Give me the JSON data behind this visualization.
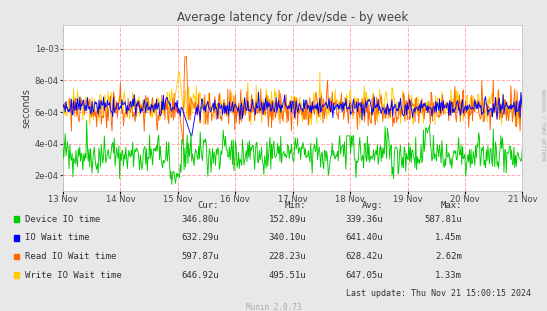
{
  "title": "Average latency for /dev/sde - by week",
  "ylabel": "seconds",
  "xlabel_dates": [
    "13 Nov",
    "14 Nov",
    "15 Nov",
    "16 Nov",
    "17 Nov",
    "18 Nov",
    "19 Nov",
    "20 Nov",
    "21 Nov"
  ],
  "ylim": [
    0.0001,
    0.00115
  ],
  "yticks": [
    0.0002,
    0.0004,
    0.0006,
    0.0008,
    0.001
  ],
  "bg_color": "#e8e8e8",
  "plot_bg_color": "#ffffff",
  "grid_color": "#ffaaaa",
  "line_colors": {
    "device_io": "#00cc00",
    "io_wait": "#0000ff",
    "read_io_wait": "#ff6600",
    "write_io_wait": "#ffcc00"
  },
  "legend": [
    {
      "label": "Device IO time",
      "color": "#00cc00",
      "cur": "346.80u",
      "min": "152.89u",
      "avg": "339.36u",
      "max": "587.81u"
    },
    {
      "label": "IO Wait time",
      "color": "#0000ff",
      "cur": "632.29u",
      "min": "340.10u",
      "avg": "641.40u",
      "max": "1.45m"
    },
    {
      "label": "Read IO Wait time",
      "color": "#ff6600",
      "cur": "597.87u",
      "min": "228.23u",
      "avg": "628.42u",
      "max": "2.62m"
    },
    {
      "label": "Write IO Wait time",
      "color": "#ffcc00",
      "cur": "646.92u",
      "min": "495.51u",
      "avg": "647.05u",
      "max": "1.33m"
    }
  ],
  "footer_left": "Munin 2.0.73",
  "footer_right": "Last update: Thu Nov 21 15:00:15 2024",
  "rrdtool_label": "RRDTOOL / TOBI OETIKER",
  "n_points": 600
}
